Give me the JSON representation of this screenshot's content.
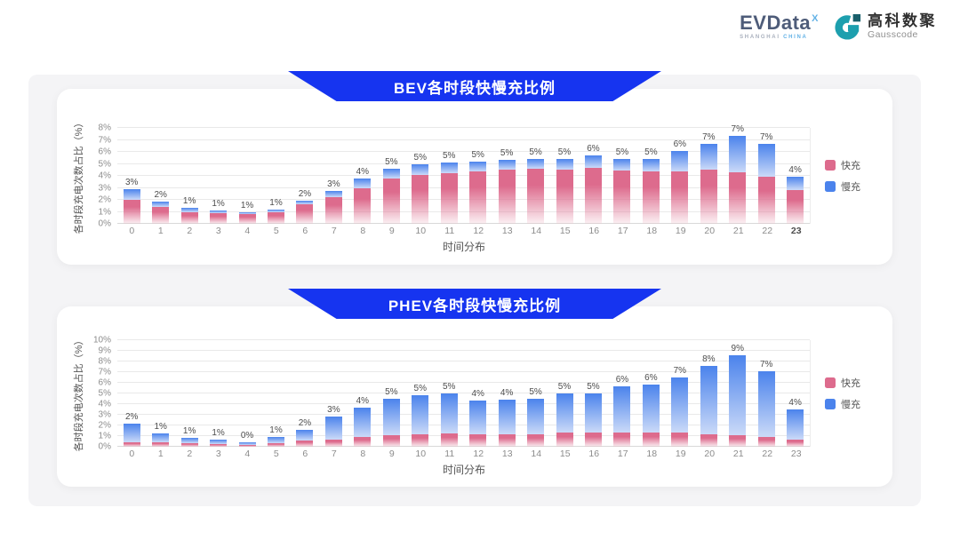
{
  "page": {
    "background": "#ffffff",
    "panel_bg": "#f4f4f6",
    "card_bg": "#ffffff"
  },
  "logo": {
    "evdata_text": "EVData",
    "evdata_sup": "X",
    "evdata_sub_gray": "SHANGHAI",
    "evdata_sub_blue": "CHINA",
    "gausscode_icon": "gausscode-g-icon",
    "gausscode_cn": "高科数聚",
    "gausscode_en": "Gausscode"
  },
  "colors": {
    "banner_blue": "#1634f0",
    "fast_pink": "#dd6b8d",
    "fast_fade": "rgba(238,189,203,0.22)",
    "slow_blue": "#4b83ec",
    "slow_fade": "#cbdaf8",
    "gridline": "#e9e9e9",
    "axis_line": "#d9d9d9",
    "tick_text": "#8c8c8c",
    "label_text": "#4d4d4d",
    "gausscode_teal": "#1d9fae",
    "gausscode_dark": "#195f6b"
  },
  "chart_data": [
    {
      "type": "bar",
      "stacked": true,
      "title": "BEV各时段快慢充比例",
      "xlabel": "时间分布",
      "ylabel": "各时段充电次数占比（%）",
      "ylim": [
        0,
        8
      ],
      "ytick_step": 1,
      "ytick_suffix": "%",
      "grid": true,
      "legend_position": "right",
      "bold_xtick": "23",
      "categories": [
        "0",
        "1",
        "2",
        "3",
        "4",
        "5",
        "6",
        "7",
        "8",
        "9",
        "10",
        "11",
        "12",
        "13",
        "14",
        "15",
        "16",
        "17",
        "18",
        "19",
        "20",
        "21",
        "22",
        "23"
      ],
      "series": [
        {
          "name": "快充",
          "color": "#dd6b8d",
          "values": [
            2.0,
            1.4,
            1.0,
            0.9,
            0.85,
            1.0,
            1.6,
            2.2,
            3.0,
            3.8,
            4.1,
            4.2,
            4.4,
            4.5,
            4.6,
            4.55,
            4.65,
            4.45,
            4.35,
            4.4,
            4.5,
            4.3,
            3.9,
            2.8
          ]
        },
        {
          "name": "慢充",
          "color": "#4b83ec",
          "values": [
            0.9,
            0.45,
            0.3,
            0.2,
            0.1,
            0.2,
            0.3,
            0.55,
            0.8,
            0.8,
            0.9,
            0.9,
            0.8,
            0.8,
            0.8,
            0.85,
            1.05,
            0.95,
            1.05,
            1.7,
            2.2,
            3.0,
            2.8,
            1.1
          ]
        }
      ],
      "total_labels": [
        "3%",
        "2%",
        "1%",
        "1%",
        "1%",
        "1%",
        "2%",
        "3%",
        "4%",
        "5%",
        "5%",
        "5%",
        "5%",
        "5%",
        "5%",
        "5%",
        "6%",
        "5%",
        "5%",
        "6%",
        "7%",
        "7%",
        "7%",
        "4%"
      ]
    },
    {
      "type": "bar",
      "stacked": true,
      "title": "PHEV各时段快慢充比例",
      "xlabel": "时间分布",
      "ylabel": "各时段充电次数占比（%）",
      "ylim": [
        0,
        10
      ],
      "ytick_step": 1,
      "ytick_suffix": "%",
      "grid": true,
      "legend_position": "right",
      "bold_xtick": "",
      "categories": [
        "0",
        "1",
        "2",
        "3",
        "4",
        "5",
        "6",
        "7",
        "8",
        "9",
        "10",
        "11",
        "12",
        "13",
        "14",
        "15",
        "16",
        "17",
        "18",
        "19",
        "20",
        "21",
        "22",
        "23"
      ],
      "series": [
        {
          "name": "快充",
          "color": "#dd6b8d",
          "values": [
            0.45,
            0.4,
            0.3,
            0.25,
            0.2,
            0.35,
            0.6,
            0.7,
            0.9,
            1.1,
            1.2,
            1.25,
            1.2,
            1.2,
            1.2,
            1.3,
            1.35,
            1.35,
            1.35,
            1.3,
            1.2,
            1.1,
            0.95,
            0.7
          ]
        },
        {
          "name": "慢充",
          "color": "#4b83ec",
          "values": [
            1.75,
            0.85,
            0.5,
            0.4,
            0.25,
            0.55,
            0.95,
            2.1,
            2.8,
            3.4,
            3.6,
            3.75,
            3.1,
            3.2,
            3.3,
            3.7,
            3.65,
            4.35,
            4.45,
            5.2,
            6.4,
            7.5,
            6.15,
            2.8
          ]
        }
      ],
      "total_labels": [
        "2%",
        "1%",
        "1%",
        "1%",
        "0%",
        "1%",
        "2%",
        "3%",
        "4%",
        "5%",
        "5%",
        "5%",
        "4%",
        "4%",
        "5%",
        "5%",
        "5%",
        "6%",
        "6%",
        "7%",
        "8%",
        "9%",
        "7%",
        "4%"
      ]
    }
  ]
}
